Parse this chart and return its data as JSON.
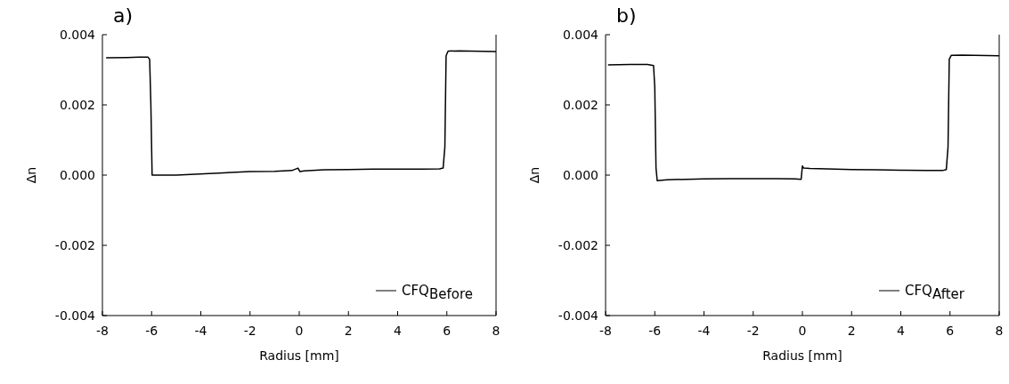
{
  "chart_data": [
    {
      "type": "line",
      "title": "a)",
      "xlabel": "Radius [mm]",
      "ylabel": "Δn",
      "xlim": [
        -8,
        8
      ],
      "xticks": [
        -8,
        -6,
        -4,
        -2,
        0,
        2,
        4,
        6,
        8
      ],
      "ylim": [
        -0.004,
        0.004
      ],
      "yticks": [
        {
          "value": -0.004,
          "label": "-0.004"
        },
        {
          "value": -0.002,
          "label": "-0.002"
        },
        {
          "value": 0,
          "label": "0.000"
        },
        {
          "value": 0.002,
          "label": "0.002"
        },
        {
          "value": 0.004,
          "label": "0.004"
        }
      ],
      "grid": false,
      "legend": "bottom right",
      "line_style": "solid",
      "series": [
        {
          "name": "CFQ$_{Before}$",
          "color": "#000000",
          "x": [
            -7.85,
            -7,
            -6.5,
            -6.15,
            -6.08,
            -6.03,
            -5.98,
            -5,
            -2,
            -1,
            -0.3,
            -0.05,
            0.03,
            0.2,
            1,
            2,
            3,
            4,
            5,
            5.7,
            5.85,
            5.92,
            5.97,
            6.05,
            6.5,
            7,
            8
          ],
          "values": [
            0.00334,
            0.00335,
            0.00336,
            0.00336,
            0.0033,
            0.002,
            0,
            0,
            0.0001,
            0.00011,
            0.00013,
            0.0002,
            0.0001,
            0.00012,
            0.00015,
            0.00016,
            0.00017,
            0.00017,
            0.00017,
            0.00018,
            0.0002,
            0.0008,
            0.0034,
            0.00353,
            0.00354,
            0.00353,
            0.00352
          ]
        }
      ]
    },
    {
      "type": "line",
      "title": "b)",
      "xlabel": "Radius [mm]",
      "ylabel": "Δn",
      "xlim": [
        -8,
        8
      ],
      "xticks": [
        -8,
        -6,
        -4,
        -2,
        0,
        2,
        4,
        6,
        8
      ],
      "ylim": [
        -0.004,
        0.004
      ],
      "yticks": [
        {
          "value": -0.004,
          "label": "-0.004"
        },
        {
          "value": -0.002,
          "label": "-0.002"
        },
        {
          "value": 0,
          "label": "0.000"
        },
        {
          "value": 0.002,
          "label": "0.002"
        },
        {
          "value": 0.004,
          "label": "0.004"
        }
      ],
      "grid": false,
      "legend": "bottom right",
      "line_style": "solid",
      "series": [
        {
          "name": "CFQ$_{After}$",
          "color": "#000000",
          "x": [
            -7.9,
            -7,
            -6.3,
            -6.05,
            -6,
            -5.95,
            -5.9,
            -5.5,
            -4,
            -3,
            -2,
            -1,
            -0.3,
            -0.05,
            0,
            0.05,
            0.3,
            1,
            2,
            3,
            4,
            5,
            5.7,
            5.85,
            5.92,
            5.97,
            6.05,
            6.5,
            7,
            8
          ],
          "values": [
            0.00314,
            0.00315,
            0.00315,
            0.00312,
            0.0025,
            0.0002,
            -0.00016,
            -0.00013,
            -0.00011,
            -0.0001,
            -0.0001,
            -0.0001,
            -0.00011,
            -0.00012,
            0.00026,
            0.0002,
            0.00019,
            0.00018,
            0.00016,
            0.00015,
            0.00014,
            0.00013,
            0.00013,
            0.00016,
            0.0008,
            0.0033,
            0.00341,
            0.00342,
            0.00341,
            0.0034
          ]
        }
      ]
    }
  ]
}
